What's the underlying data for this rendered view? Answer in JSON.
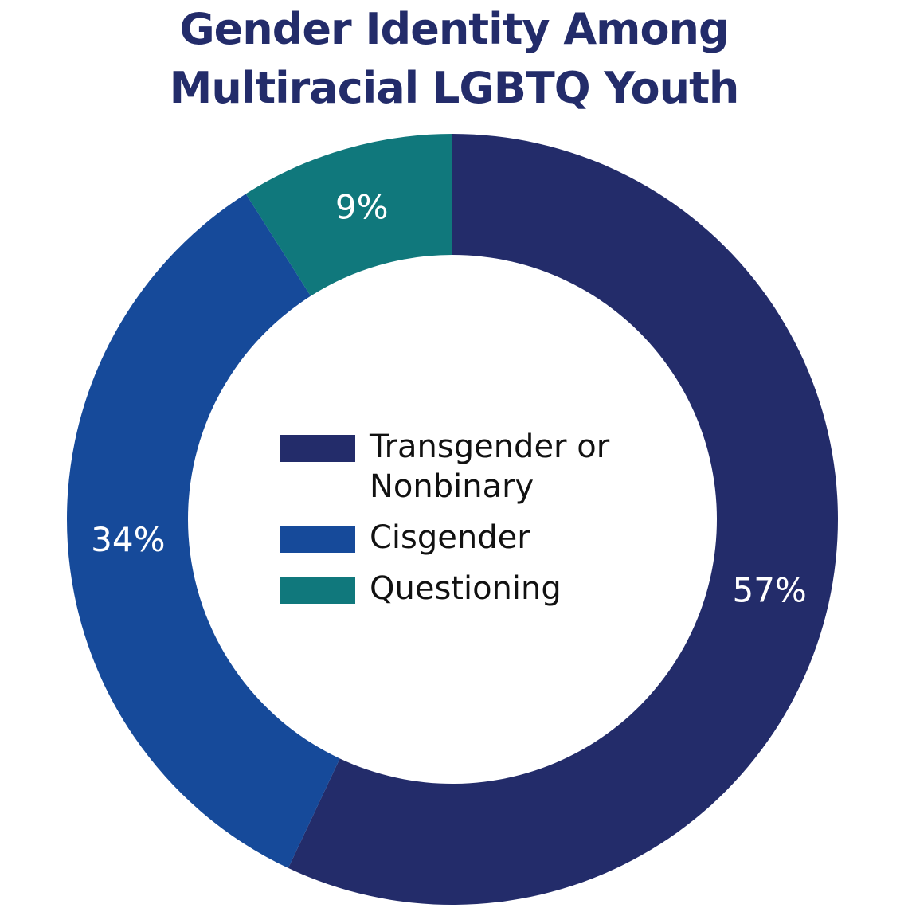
{
  "chart_data": {
    "type": "pie",
    "variant": "donut",
    "title": "Gender Identity Among Multiracial LGBTQ Youth",
    "title_lines": [
      "Gender Identity Among",
      "Multiracial LGBTQ Youth"
    ],
    "categories": [
      "Transgender or Nonbinary",
      "Cisgender",
      "Questioning"
    ],
    "values": [
      57,
      34,
      9
    ],
    "value_labels": [
      "57%",
      "34%",
      "9%"
    ],
    "colors": [
      "#232c6a",
      "#164a9a",
      "#10787c"
    ],
    "label_color": "#ffffff",
    "legend": {
      "placement": "center",
      "items": [
        {
          "label_lines": [
            "Transgender or",
            "Nonbinary"
          ],
          "color": "#232c6a"
        },
        {
          "label_lines": [
            "Cisgender"
          ],
          "color": "#164a9a"
        },
        {
          "label_lines": [
            "Questioning"
          ],
          "color": "#10787c"
        }
      ]
    },
    "start": "top",
    "direction": "clockwise"
  }
}
